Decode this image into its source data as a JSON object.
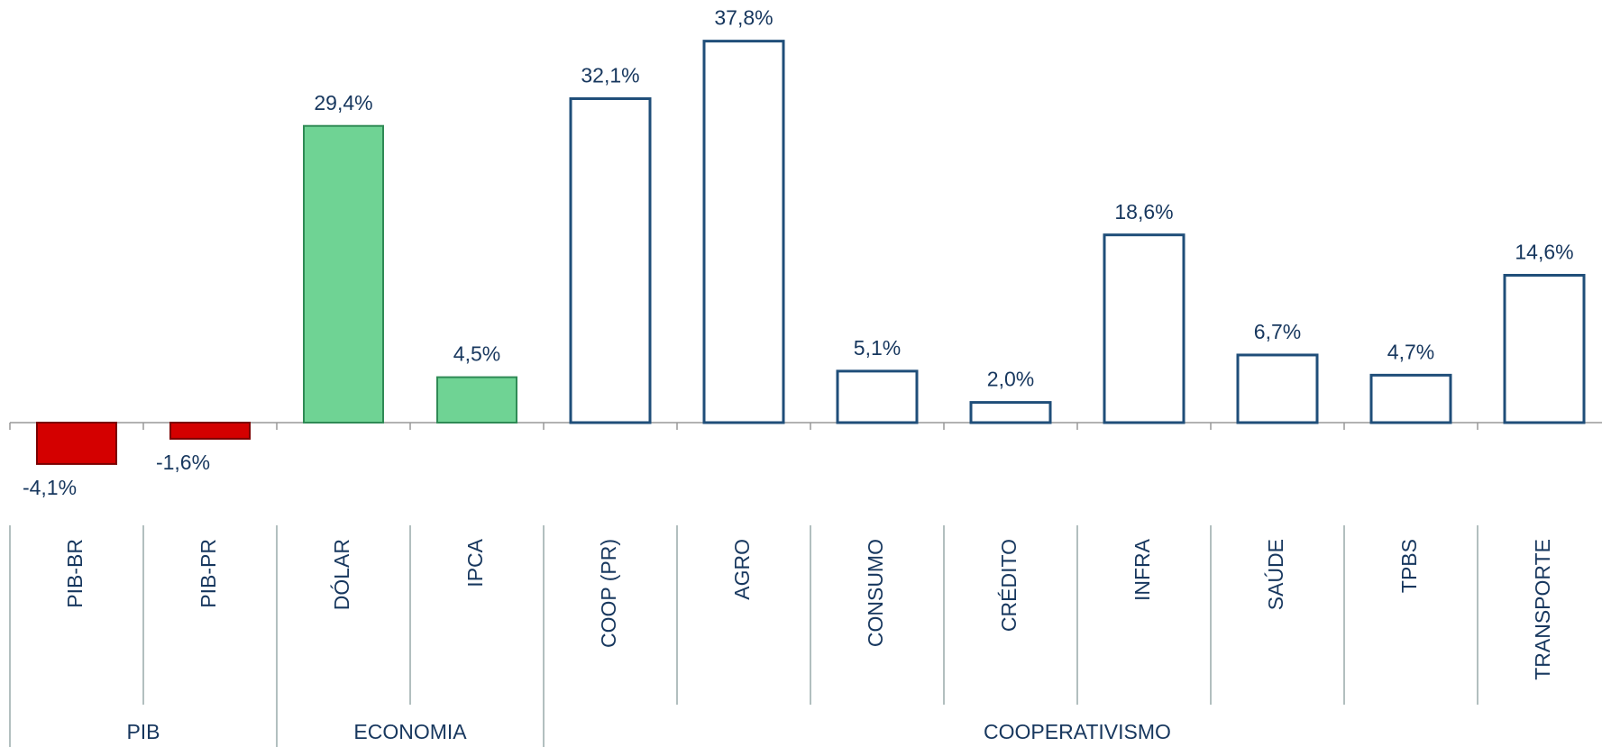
{
  "chart_data": {
    "type": "bar",
    "categories": [
      "PIB-BR",
      "PIB-PR",
      "DÓLAR",
      "IPCA",
      "COOP (PR)",
      "AGRO",
      "CONSUMO",
      "CRÉDITO",
      "INFRA",
      "SAÚDE",
      "TPBS",
      "TRANSPORTE"
    ],
    "values": [
      -4.1,
      -1.6,
      29.4,
      4.5,
      32.1,
      37.8,
      5.1,
      2.0,
      18.6,
      6.7,
      4.7,
      14.6
    ],
    "value_labels": [
      "-4,1%",
      "-1,6%",
      "29,4%",
      "4,5%",
      "32,1%",
      "37,8%",
      "5,1%",
      "2,0%",
      "18,6%",
      "6,7%",
      "4,7%",
      "14,6%"
    ],
    "colors": [
      "#d40000",
      "#d40000",
      "#6fd394",
      "#6fd394",
      "#ffffff",
      "#ffffff",
      "#ffffff",
      "#ffffff",
      "#ffffff",
      "#ffffff",
      "#ffffff",
      "#ffffff"
    ],
    "groups": [
      {
        "label": "PIB",
        "size": 2
      },
      {
        "label": "ECONOMIA",
        "size": 2
      },
      {
        "label": "COOPERATIVISMO",
        "size": 8
      }
    ]
  }
}
